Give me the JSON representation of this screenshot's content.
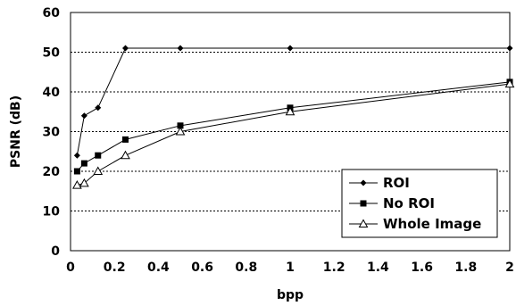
{
  "chart_data": {
    "type": "line",
    "title": "",
    "xlabel": "bpp",
    "ylabel": "PSNR (dB)",
    "xlim": [
      0,
      2
    ],
    "ylim": [
      0,
      60
    ],
    "x_ticks": [
      "0",
      "0.2",
      "0.4",
      "0.6",
      "0.8",
      "1",
      "1.2",
      "1.4",
      "1.6",
      "1.8",
      "2"
    ],
    "y_ticks": [
      "0",
      "10",
      "20",
      "30",
      "40",
      "50",
      "60"
    ],
    "grid": "horizontal dashed",
    "legend_position": "bottom-right",
    "series": [
      {
        "name": "ROI",
        "marker": "diamond",
        "x": [
          0.03,
          0.0625,
          0.125,
          0.25,
          0.5,
          1,
          2
        ],
        "y": [
          24,
          34,
          36,
          51,
          51,
          51,
          51
        ]
      },
      {
        "name": "No ROI",
        "marker": "square",
        "x": [
          0.03,
          0.0625,
          0.125,
          0.25,
          0.5,
          1,
          2
        ],
        "y": [
          20,
          22,
          24,
          28,
          31.5,
          36,
          42.5
        ]
      },
      {
        "name": "Whole Image",
        "marker": "triangle",
        "x": [
          0.03,
          0.0625,
          0.125,
          0.25,
          0.5,
          1,
          2
        ],
        "y": [
          16.5,
          17,
          20,
          24,
          30,
          35,
          42
        ]
      }
    ]
  }
}
